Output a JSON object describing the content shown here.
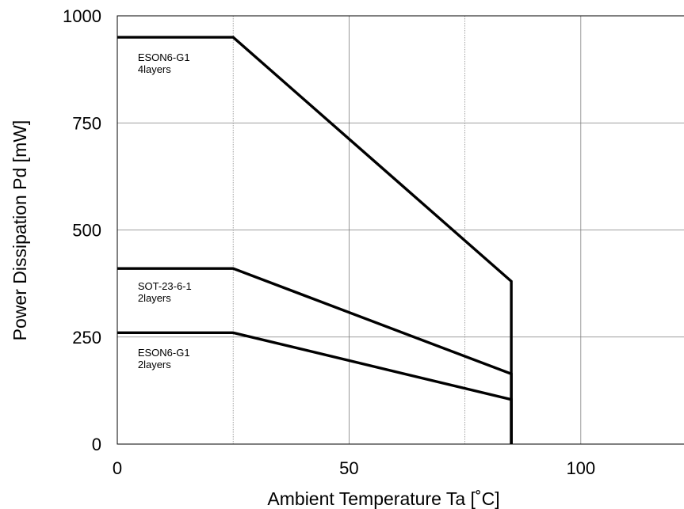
{
  "chart_data": {
    "type": "line",
    "title": "",
    "xlabel": "Ambient Temperature Ta [˚C]",
    "ylabel": "Power Dissipation Pd [mW]",
    "xlim": [
      0,
      125
    ],
    "ylim": [
      0,
      1000
    ],
    "xticks": [
      {
        "value": 0,
        "label": "0"
      },
      {
        "value": 50,
        "label": "50"
      },
      {
        "value": 100,
        "label": "100"
      }
    ],
    "yticks": [
      {
        "value": 0,
        "label": "0"
      },
      {
        "value": 250,
        "label": "250"
      },
      {
        "value": 500,
        "label": "500"
      },
      {
        "value": 750,
        "label": "750"
      },
      {
        "value": 1000,
        "label": "1000"
      }
    ],
    "grid_solid_x": [
      50,
      100
    ],
    "grid_dotted_x": [
      25,
      75
    ],
    "grid_solid_y": [
      250,
      500,
      750
    ],
    "series": [
      {
        "key": "eson6-4layers",
        "label_lines": [
          "ESON6-G1",
          "4layers"
        ],
        "label_anchor": {
          "x": 1,
          "y": 895
        },
        "points": [
          [
            0,
            950
          ],
          [
            25,
            950
          ],
          [
            85,
            380
          ],
          [
            85,
            0
          ]
        ]
      },
      {
        "key": "sot23-2layers",
        "label_lines": [
          "SOT-23-6-1",
          "2layers"
        ],
        "label_anchor": {
          "x": 1,
          "y": 360
        },
        "points": [
          [
            0,
            410
          ],
          [
            25,
            410
          ],
          [
            85,
            164
          ],
          [
            85,
            0
          ]
        ]
      },
      {
        "key": "eson6-2layers",
        "label_lines": [
          "ESON6-G1",
          "2layers"
        ],
        "label_anchor": {
          "x": 1,
          "y": 205
        },
        "points": [
          [
            0,
            260
          ],
          [
            25,
            260
          ],
          [
            85,
            104
          ],
          [
            85,
            0
          ]
        ]
      }
    ]
  }
}
